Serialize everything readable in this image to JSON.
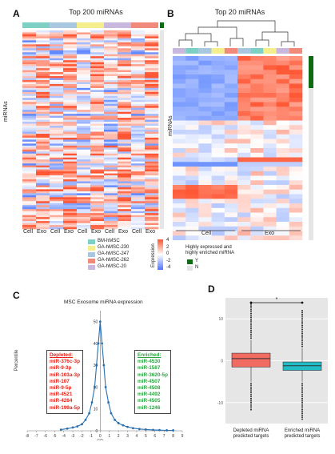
{
  "panels": {
    "A": {
      "letter": "A",
      "title": "Top 200 miRNAs",
      "ylabel": "miRNAs",
      "columns": [
        "Cell",
        "Exo",
        "Cell",
        "Exo",
        "Cell",
        "Exo",
        "Cell",
        "Exo",
        "Cell",
        "Exo"
      ],
      "group_colors": [
        "#7ecfc4",
        "#7ecfc4",
        "#a9c8e0",
        "#a9c8e0",
        "#f4ef8c",
        "#f4ef8c",
        "#c9b8de",
        "#c9b8de",
        "#f08a7a",
        "#f08a7a"
      ]
    },
    "B": {
      "letter": "B",
      "title": "Top 20 miRNAs",
      "ylabel": "miRNAs",
      "groups": [
        "Cell",
        "Exo"
      ]
    },
    "C": {
      "letter": "C",
      "title": "MSC Exosome miRNA expression",
      "ylabel": "Percentile",
      "xlabel": "SD",
      "depleted_title": "Depleted:",
      "depleted": [
        "miR-376c-3p",
        "miR-9-3p",
        "miR-103a-3p",
        "miR-107",
        "miR-9-5p",
        "miR-4521",
        "miR-4284",
        "miR-199a-5p"
      ],
      "enriched_title": "Enriched:",
      "enriched": [
        "miR-4530",
        "miR-1587",
        "miR-3620-5p",
        "miR-4507",
        "miR-4508",
        "miR-4492",
        "miR-4505",
        "miR-1246"
      ]
    },
    "D": {
      "letter": "D",
      "significance": "*",
      "categories": [
        "Depleted miRNA predicted targets",
        "Enriched miRNA predicted targets"
      ],
      "ytick_labels": [
        "10",
        "0",
        "-10"
      ]
    }
  },
  "legend": {
    "groups": [
      {
        "label": "BM-hMSC",
        "color": "#7ecfc4"
      },
      {
        "label": "GA-hMSC-230",
        "color": "#f4ef8c"
      },
      {
        "label": "GA-hMSC-247",
        "color": "#a9c8e0"
      },
      {
        "label": "GA-hMSC-262",
        "color": "#f08a7a"
      },
      {
        "label": "GA-hMSC-20",
        "color": "#c9b8de"
      }
    ],
    "expression_label": "Expression",
    "expression_ticks": [
      "4",
      "2",
      "0",
      "-2",
      "-4"
    ],
    "flag_title_line1": "Highly expressed and",
    "flag_title_line2": "highly enriched miRNA",
    "flag_items": [
      {
        "label": "Y",
        "color": "#0e6b14"
      },
      {
        "label": "N",
        "color": "#e9e9e9"
      }
    ]
  },
  "chart_data": [
    {
      "type": "heatmap",
      "title": "Top 200 miRNAs",
      "ylabel": "miRNAs",
      "columns": [
        "Cell",
        "Exo",
        "Cell",
        "Exo",
        "Cell",
        "Exo",
        "Cell",
        "Exo",
        "Cell",
        "Exo"
      ],
      "rows": 200,
      "value_range": [
        -4,
        4
      ]
    },
    {
      "type": "heatmap",
      "title": "Top 20 miRNAs",
      "ylabel": "miRNAs",
      "groups": [
        "Cell",
        "Exo"
      ],
      "value_range": [
        -4,
        4
      ]
    },
    {
      "type": "scatter",
      "title": "MSC Exosome miRNA expression",
      "xlabel": "SD",
      "ylabel": "Percentile",
      "xlim": [
        -8,
        9
      ],
      "x_ticks": [
        -8,
        -7,
        -6,
        -5,
        -4,
        -3,
        -2,
        -1,
        0,
        1,
        2,
        3,
        4,
        5,
        6,
        7,
        8,
        9
      ],
      "ylim": [
        0,
        55
      ],
      "y_ticks": [
        0,
        10,
        20,
        30,
        40,
        50
      ],
      "series": [
        {
          "x": [
            -4.3,
            -3.6,
            -3.0,
            -2.5,
            -2.0,
            -1.6,
            -1.2,
            -0.9,
            -0.6,
            -0.4,
            -0.2,
            0.0,
            0.2,
            0.4,
            0.6,
            0.9,
            1.2,
            1.6,
            2.0,
            2.5,
            3.0,
            3.6,
            4.3,
            5.0,
            5.8,
            6.5,
            7.3,
            8.0
          ],
          "y": [
            0.5,
            1,
            1.5,
            2,
            3,
            5,
            8,
            13,
            20,
            30,
            40,
            50,
            40,
            30,
            20,
            13,
            8,
            5,
            3.5,
            2.5,
            1.8,
            1.2,
            0.8,
            0.6,
            0.4,
            0.3,
            0.2,
            0.2
          ]
        }
      ]
    },
    {
      "type": "box",
      "categories": [
        "Depleted miRNA predicted targets",
        "Enriched miRNA predicted targets"
      ],
      "ylim": [
        -15,
        15
      ],
      "y_ticks": [
        10,
        0,
        -10
      ],
      "series": [
        {
          "name": "Depleted miRNA predicted targets",
          "q1": -1.5,
          "median": 0.5,
          "q3": 1.8,
          "whisker_low": -5,
          "whisker_high": 5
        },
        {
          "name": "Enriched miRNA predicted targets",
          "q1": -2.3,
          "median": -1.2,
          "q3": -0.3,
          "whisker_low": -5,
          "whisker_high": 3
        }
      ]
    }
  ]
}
